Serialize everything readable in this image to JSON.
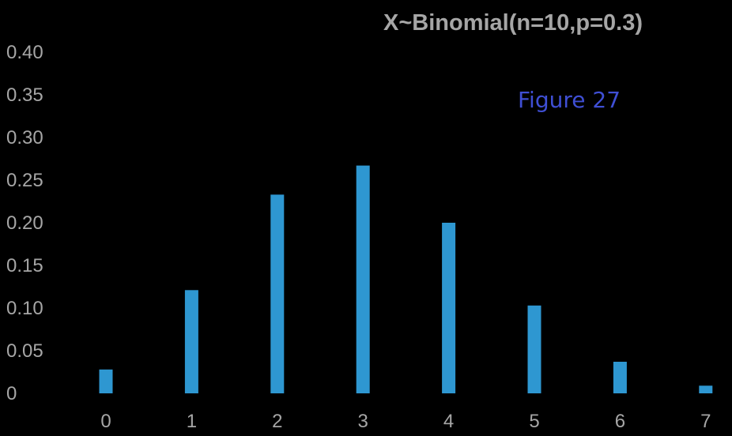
{
  "chart_data": {
    "type": "bar",
    "title": "X~Binomial(n=10,p=0.3)",
    "xlabel": "",
    "ylabel": "",
    "categories": [
      "0",
      "1",
      "2",
      "3",
      "4",
      "5",
      "6",
      "7"
    ],
    "values": [
      0.028,
      0.121,
      0.233,
      0.267,
      0.2,
      0.103,
      0.037,
      0.009
    ],
    "y_ticks": [
      "0",
      "0.05",
      "0.10",
      "0.15",
      "0.20",
      "0.25",
      "0.30",
      "0.35",
      "0.40"
    ],
    "ylim": [
      0,
      0.4
    ],
    "grid": false,
    "legend": "none",
    "annotation": "Figure 27",
    "colors": {
      "background": "#000000",
      "bar": "#2e97d1",
      "title": "#a6a6a6",
      "tick_labels": "#a6a6a6",
      "annotation": "#3f4fd4"
    }
  }
}
